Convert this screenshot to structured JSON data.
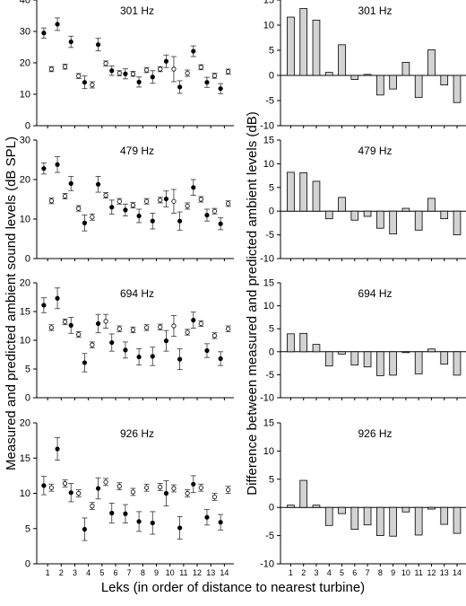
{
  "figure": {
    "left_ylabel": "Measured and predicted ambient sound levels (dB SPL)",
    "right_ylabel": "Difference between measured and predicted ambient levels (dB)",
    "xlabel": "Leks (in order of distance to nearest turbine)"
  },
  "chart_data": [
    {
      "type": "scatter",
      "title": "301 Hz",
      "ylim": [
        0,
        40
      ],
      "yticks": [
        "0",
        "10",
        "20",
        "30",
        "40"
      ],
      "x": [
        1,
        2,
        3,
        4,
        5,
        6,
        7,
        8,
        9,
        10,
        11,
        12,
        13,
        14
      ],
      "series": [
        {
          "name": "",
          "style": "filled",
          "values": [
            29.5,
            32.3,
            26.7,
            13.8,
            25.8,
            17.5,
            16.5,
            13.9,
            15.5,
            20.5,
            12.3,
            23.7,
            13.8,
            11.8
          ],
          "err": [
            1.6,
            2,
            1.8,
            2,
            2,
            1.5,
            1.6,
            1.6,
            2,
            2,
            2,
            1.7,
            1.6,
            1.6
          ]
        },
        {
          "name": "",
          "style": "open",
          "values": [
            18,
            18.8,
            15.8,
            13,
            19.8,
            16.7,
            16.5,
            17.7,
            18,
            18,
            16.7,
            18.6,
            15.9,
            17.2
          ],
          "err": [
            0.8,
            0.8,
            0.8,
            1,
            0.8,
            0.8,
            0.8,
            0.8,
            0.8,
            4,
            1,
            0.8,
            0.8,
            0.8
          ]
        }
      ]
    },
    {
      "type": "bar",
      "title": "301 Hz",
      "ylim": [
        -10,
        15
      ],
      "yticks": [
        "-10",
        "-5",
        "0",
        "5",
        "10",
        "15"
      ],
      "categories": [
        "1",
        "2",
        "3",
        "4",
        "5",
        "6",
        "7",
        "8",
        "9",
        "10",
        "11",
        "12",
        "13",
        "14"
      ],
      "values": [
        11.6,
        13.3,
        11,
        0.6,
        6.1,
        -0.8,
        0.2,
        -3.9,
        -2.7,
        2.6,
        -4.4,
        5.1,
        -1.9,
        -5.4
      ]
    },
    {
      "type": "scatter",
      "title": "479 Hz",
      "ylim": [
        0,
        30
      ],
      "yticks": [
        "0",
        "10",
        "20",
        "30"
      ],
      "x": [
        1,
        2,
        3,
        4,
        5,
        6,
        7,
        8,
        9,
        10,
        11,
        12,
        13,
        14
      ],
      "series": [
        {
          "name": "",
          "style": "filled",
          "values": [
            22.8,
            23.8,
            19,
            9,
            18.8,
            13,
            12.3,
            10.8,
            9.5,
            15.1,
            9.5,
            18,
            11,
            8.8
          ],
          "err": [
            1.4,
            2,
            1.8,
            2,
            2,
            1.8,
            1.5,
            1.7,
            2,
            2,
            2.3,
            2,
            1.5,
            1.5
          ]
        },
        {
          "name": "",
          "style": "open",
          "values": [
            14.6,
            15.8,
            12.7,
            10.5,
            16,
            14.5,
            13.5,
            14.5,
            14.8,
            14.5,
            13.3,
            15,
            12,
            13.9
          ],
          "err": [
            0.7,
            0.7,
            0.7,
            0.8,
            0.7,
            0.7,
            0.7,
            0.7,
            0.7,
            3,
            0.8,
            0.7,
            0.7,
            0.7
          ]
        }
      ]
    },
    {
      "type": "bar",
      "title": "479 Hz",
      "ylim": [
        -10,
        15
      ],
      "yticks": [
        "-10",
        "-5",
        "0",
        "5",
        "10",
        "15"
      ],
      "categories": [
        "1",
        "2",
        "3",
        "4",
        "5",
        "6",
        "7",
        "8",
        "9",
        "10",
        "11",
        "12",
        "13",
        "14"
      ],
      "values": [
        8.2,
        8.1,
        6.3,
        -1.6,
        2.9,
        -1.9,
        -1.1,
        -3.6,
        -4.8,
        0.6,
        -4,
        2.7,
        -1.6,
        -5
      ]
    },
    {
      "type": "scatter",
      "title": "694 Hz",
      "ylim": [
        0,
        20
      ],
      "yticks": [
        "0",
        "5",
        "10",
        "15",
        "20"
      ],
      "x": [
        1,
        2,
        3,
        4,
        5,
        6,
        7,
        8,
        9,
        10,
        11,
        12,
        13,
        14
      ],
      "series": [
        {
          "name": "",
          "style": "filled",
          "values": [
            16.1,
            17.3,
            12.6,
            6.1,
            12.9,
            9.6,
            8.3,
            7.1,
            7.2,
            9.9,
            6.7,
            13.5,
            8.2,
            6.8
          ],
          "err": [
            1.3,
            1.8,
            1.4,
            1.6,
            1.6,
            1.5,
            1.4,
            1.4,
            1.6,
            1.8,
            1.8,
            1.4,
            1.2,
            1.2
          ]
        },
        {
          "name": "",
          "style": "open",
          "values": [
            12.2,
            13.2,
            11,
            9.2,
            13.3,
            12,
            11.8,
            12.2,
            12.3,
            12.5,
            11.4,
            12.9,
            10.8,
            12
          ]
        },
        {
          "name": "",
          "style": "open-errorbars",
          "err": [
            0.5,
            0.5,
            0.5,
            0.5,
            1.2,
            0.5,
            0.5,
            0.5,
            0.5,
            1.8,
            0.5,
            0.5,
            0.5,
            0.5
          ]
        }
      ]
    },
    {
      "type": "bar",
      "title": "694 Hz",
      "ylim": [
        -10,
        15
      ],
      "yticks": [
        "-10",
        "-5",
        "0",
        "5",
        "10",
        "15"
      ],
      "categories": [
        "1",
        "2",
        "3",
        "4",
        "5",
        "6",
        "7",
        "8",
        "9",
        "10",
        "11",
        "12",
        "13",
        "14"
      ],
      "values": [
        3.9,
        4,
        1.6,
        -3.1,
        -0.5,
        -2.9,
        -3.3,
        -5.2,
        -5.1,
        0,
        -4.8,
        0.6,
        -2.7,
        -5.1
      ]
    },
    {
      "type": "scatter",
      "title": "926 Hz",
      "ylim": [
        0,
        20
      ],
      "yticks": [
        "0",
        "5",
        "10",
        "15",
        "20"
      ],
      "x": [
        1,
        2,
        3,
        4,
        5,
        6,
        7,
        8,
        9,
        10,
        11,
        12,
        13,
        14
      ],
      "series": [
        {
          "name": "",
          "style": "filled",
          "values": [
            11.1,
            16.3,
            10.1,
            4.9,
            10.7,
            7.2,
            7.1,
            6,
            5.8,
            10,
            5.1,
            11.3,
            6.6,
            5.9
          ],
          "err": [
            1.3,
            1.6,
            1.3,
            1.6,
            1.5,
            1.4,
            1.3,
            1.4,
            1.6,
            1.8,
            1.6,
            1.2,
            1.1,
            1.1
          ]
        },
        {
          "name": "",
          "style": "open",
          "values": [
            10.8,
            11.4,
            10,
            8.2,
            11.6,
            11,
            10.2,
            10.8,
            10.9,
            10.7,
            10,
            10.8,
            9.5,
            10.5
          ],
          "err": [
            0.5,
            0.5,
            0.5,
            0.5,
            0.5,
            0.5,
            0.5,
            0.5,
            0.5,
            0.5,
            0.5,
            0.5,
            0.5,
            0.5
          ]
        }
      ]
    },
    {
      "type": "bar",
      "title": "926 Hz",
      "ylim": [
        -10,
        15
      ],
      "yticks": [
        "-10",
        "-5",
        "0",
        "5",
        "10",
        "15"
      ],
      "categories": [
        "1",
        "2",
        "3",
        "4",
        "5",
        "6",
        "7",
        "8",
        "9",
        "10",
        "11",
        "12",
        "13",
        "14"
      ],
      "values": [
        0.4,
        4.8,
        0.4,
        -3.2,
        -1.1,
        -3.9,
        -3.1,
        -5,
        -5.1,
        -0.8,
        -4.9,
        -0.3,
        -3,
        -4.6
      ]
    }
  ]
}
